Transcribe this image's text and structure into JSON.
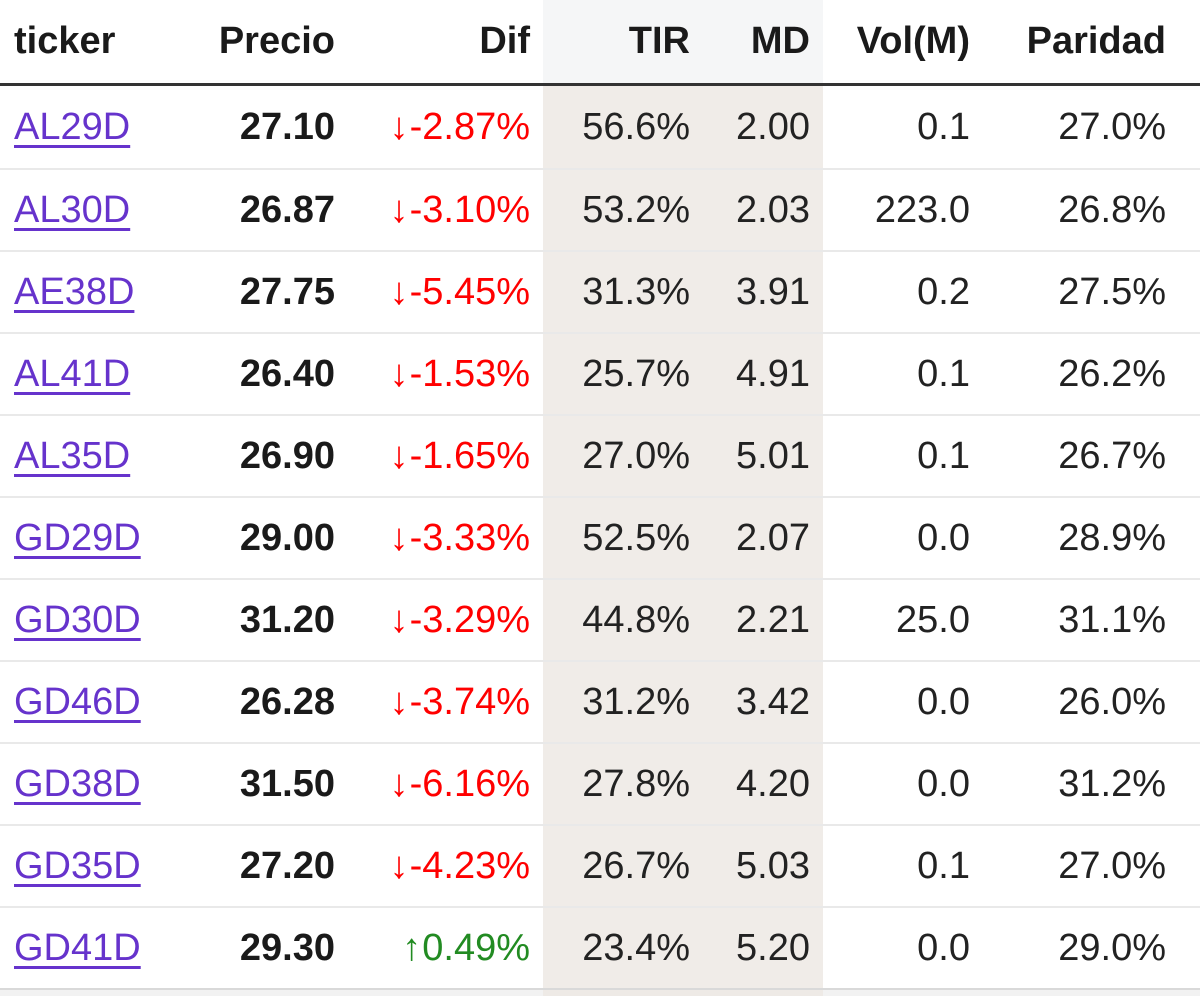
{
  "table": {
    "columns": [
      {
        "key": "ticker",
        "label": "ticker"
      },
      {
        "key": "precio",
        "label": "Precio"
      },
      {
        "key": "dif",
        "label": "Dif"
      },
      {
        "key": "tir",
        "label": "TIR"
      },
      {
        "key": "md",
        "label": "MD"
      },
      {
        "key": "vol",
        "label": "Vol(M)"
      },
      {
        "key": "paridad",
        "label": "Paridad"
      }
    ],
    "rows": [
      {
        "ticker": "AL29D",
        "precio": "27.10",
        "dif": "-2.87%",
        "dif_direction": "down",
        "tir": "56.6%",
        "md": "2.00",
        "vol": "0.1",
        "paridad": "27.0%"
      },
      {
        "ticker": "AL30D",
        "precio": "26.87",
        "dif": "-3.10%",
        "dif_direction": "down",
        "tir": "53.2%",
        "md": "2.03",
        "vol": "223.0",
        "paridad": "26.8%"
      },
      {
        "ticker": "AE38D",
        "precio": "27.75",
        "dif": "-5.45%",
        "dif_direction": "down",
        "tir": "31.3%",
        "md": "3.91",
        "vol": "0.2",
        "paridad": "27.5%"
      },
      {
        "ticker": "AL41D",
        "precio": "26.40",
        "dif": "-1.53%",
        "dif_direction": "down",
        "tir": "25.7%",
        "md": "4.91",
        "vol": "0.1",
        "paridad": "26.2%"
      },
      {
        "ticker": "AL35D",
        "precio": "26.90",
        "dif": "-1.65%",
        "dif_direction": "down",
        "tir": "27.0%",
        "md": "5.01",
        "vol": "0.1",
        "paridad": "26.7%"
      },
      {
        "ticker": "GD29D",
        "precio": "29.00",
        "dif": "-3.33%",
        "dif_direction": "down",
        "tir": "52.5%",
        "md": "2.07",
        "vol": "0.0",
        "paridad": "28.9%"
      },
      {
        "ticker": "GD30D",
        "precio": "31.20",
        "dif": "-3.29%",
        "dif_direction": "down",
        "tir": "44.8%",
        "md": "2.21",
        "vol": "25.0",
        "paridad": "31.1%"
      },
      {
        "ticker": "GD46D",
        "precio": "26.28",
        "dif": "-3.74%",
        "dif_direction": "down",
        "tir": "31.2%",
        "md": "3.42",
        "vol": "0.0",
        "paridad": "26.0%"
      },
      {
        "ticker": "GD38D",
        "precio": "31.50",
        "dif": "-6.16%",
        "dif_direction": "down",
        "tir": "27.8%",
        "md": "4.20",
        "vol": "0.0",
        "paridad": "31.2%"
      },
      {
        "ticker": "GD35D",
        "precio": "27.20",
        "dif": "-4.23%",
        "dif_direction": "down",
        "tir": "26.7%",
        "md": "5.03",
        "vol": "0.1",
        "paridad": "27.0%"
      },
      {
        "ticker": "GD41D",
        "precio": "29.30",
        "dif": "0.49%",
        "dif_direction": "up",
        "tir": "23.4%",
        "md": "5.20",
        "vol": "0.0",
        "paridad": "29.0%"
      }
    ]
  },
  "icons": {
    "down_arrow": "↓",
    "up_arrow": "↑"
  },
  "colors": {
    "link_purple": "#6633cc",
    "negative_red": "#ff0000",
    "positive_green": "#228b22",
    "tir_md_shade_body": "#f0ece8",
    "tir_md_shade_header": "#f5f6f7",
    "header_border": "#333333",
    "row_separator": "#e9e9e9"
  }
}
